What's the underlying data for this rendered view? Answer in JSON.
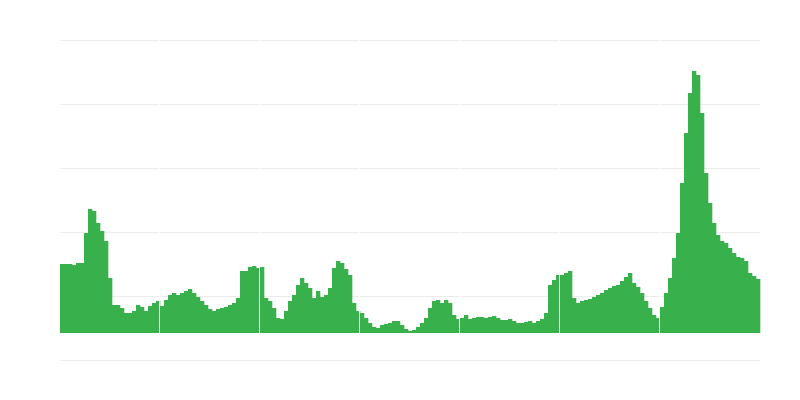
{
  "chart_data": {
    "type": "bar",
    "title": "",
    "xlabel": "",
    "ylabel": "",
    "grid": true,
    "legend": "none",
    "ylim": [
      0,
      293
    ],
    "color": "#38b04b",
    "gridColor": "#ebebeb",
    "values": [
      69,
      69,
      69,
      68,
      70,
      70,
      100,
      124,
      122,
      110,
      102,
      92,
      55,
      28,
      28,
      25,
      20,
      20,
      22,
      28,
      26,
      22,
      27,
      30,
      32,
      27,
      33,
      38,
      40,
      38,
      40,
      42,
      44,
      40,
      36,
      32,
      28,
      24,
      22,
      24,
      25,
      26,
      28,
      30,
      35,
      62,
      62,
      66,
      67,
      65,
      66,
      35,
      32,
      25,
      15,
      14,
      22,
      32,
      38,
      48,
      55,
      50,
      45,
      35,
      42,
      36,
      38,
      45,
      65,
      72,
      70,
      64,
      58,
      30,
      22,
      20,
      15,
      10,
      6,
      5,
      8,
      9,
      10,
      12,
      12,
      8,
      4,
      2,
      3,
      6,
      10,
      15,
      25,
      32,
      33,
      30,
      33,
      30,
      18,
      14,
      15,
      18,
      14,
      15,
      16,
      16,
      15,
      16,
      17,
      15,
      13,
      13,
      14,
      12,
      10,
      10,
      11,
      12,
      10,
      12,
      14,
      20,
      48,
      53,
      58,
      58,
      60,
      62,
      35,
      30,
      32,
      33,
      34,
      36,
      38,
      40,
      43,
      45,
      47,
      48,
      52,
      56,
      60,
      50,
      46,
      40,
      32,
      25,
      18,
      15,
      26,
      40,
      55,
      75,
      100,
      150,
      200,
      240,
      262,
      258,
      220,
      160,
      130,
      110,
      98,
      92,
      90,
      85,
      80,
      76,
      75,
      72,
      60,
      57,
      54
    ]
  }
}
